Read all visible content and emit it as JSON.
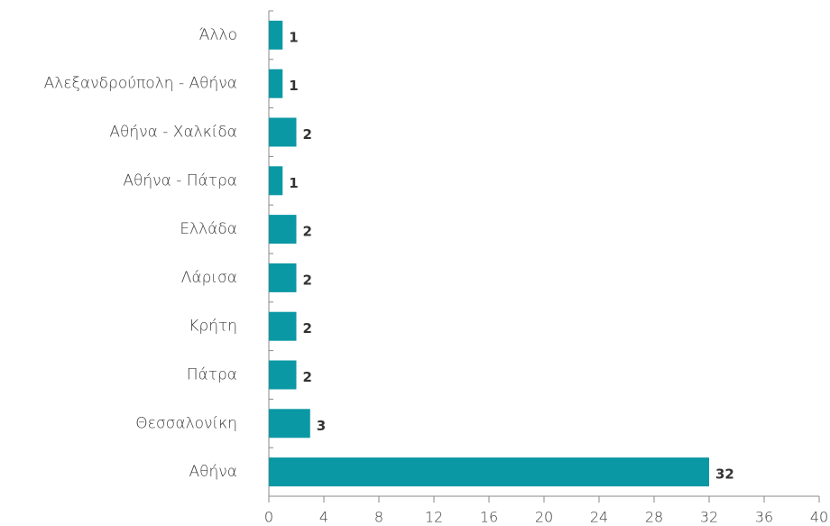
{
  "chart_data": {
    "type": "hbar",
    "categories": [
      "Άλλο",
      "Αλεξανδρούπολη - Αθήνα",
      "Αθήνα - Χαλκίδα",
      "Αθήνα - Πάτρα",
      "Ελλάδα",
      "Λάρισα",
      "Κρήτη",
      "Πάτρα",
      "Θεσσαλονίκη",
      "Αθήνα"
    ],
    "values": [
      1,
      1,
      2,
      1,
      2,
      2,
      2,
      2,
      3,
      32
    ],
    "color": "#0a98a4",
    "xlim": [
      0,
      40
    ],
    "xticks": [
      0,
      4,
      8,
      12,
      16,
      20,
      24,
      28,
      32,
      36,
      40
    ],
    "data_labels": true
  }
}
